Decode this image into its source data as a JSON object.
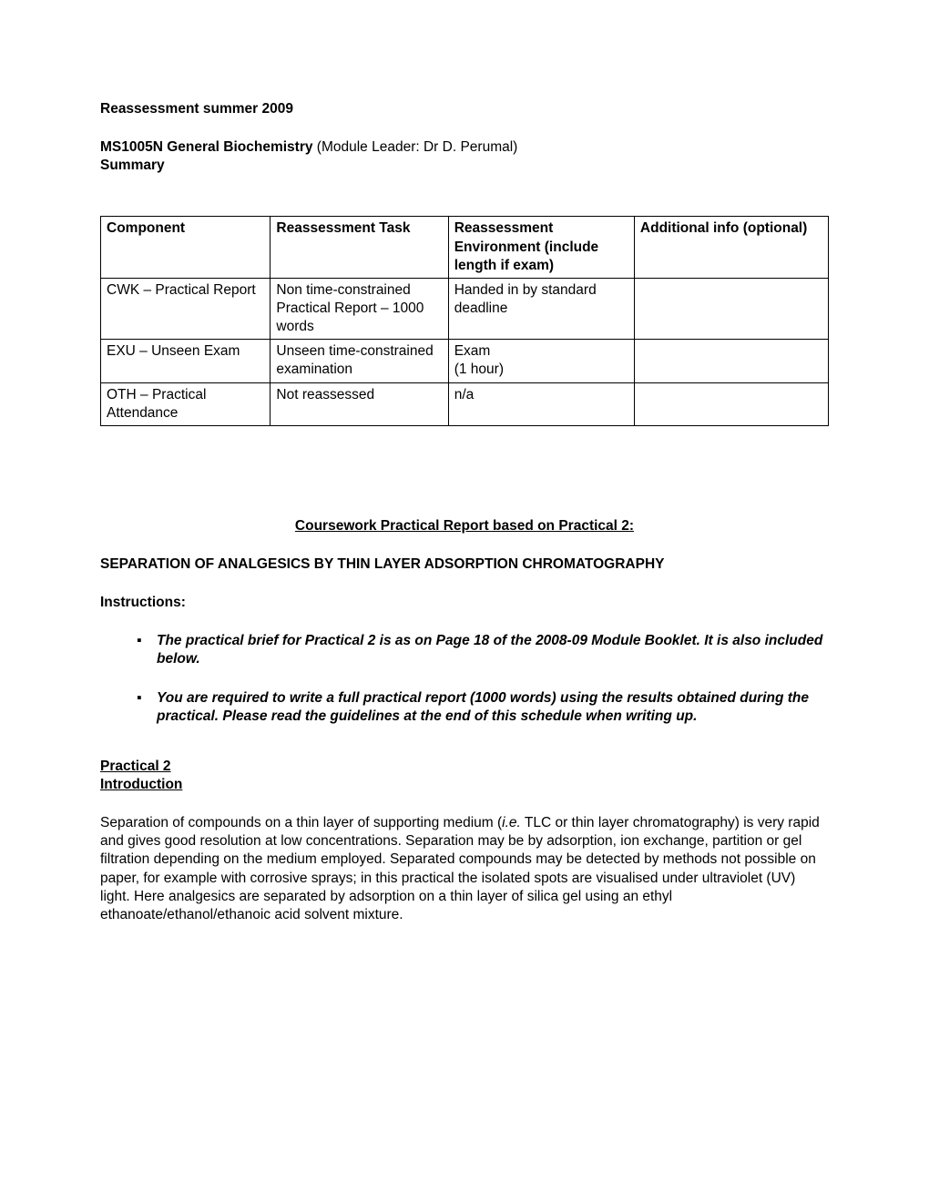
{
  "header": {
    "title": "Reassessment summer 2009",
    "module_code": "MS1005N",
    "module_name": "General Biochemistry",
    "module_leader_prefix": " (Module Leader: ",
    "module_leader": "Dr D. Perumal",
    "module_leader_suffix": ")",
    "summary": "Summary"
  },
  "table": {
    "headers": {
      "c1": "Component",
      "c2": "Reassessment Task",
      "c3": "Reassessment Environment (include length if exam)",
      "c4": "Additional info (optional)"
    },
    "rows": [
      {
        "c1": "CWK – Practical Report",
        "c2": "Non time-constrained Practical Report – 1000 words",
        "c3": "Handed in by standard deadline",
        "c4": ""
      },
      {
        "c1": "EXU – Unseen Exam",
        "c2": "Unseen time-constrained examination",
        "c3": "Exam\n(1 hour)",
        "c4": ""
      },
      {
        "c1": "OTH – Practical Attendance",
        "c2": "Not reassessed",
        "c3": "n/a",
        "c4": ""
      }
    ]
  },
  "coursework": {
    "heading": "Coursework Practical Report based on Practical 2:",
    "subheading": "SEPARATION OF ANALGESICS BY THIN LAYER ADSORPTION CHROMATOGRAPHY",
    "instructions_label": "Instructions:",
    "bullets": [
      "The practical brief for Practical 2 is as on Page 18 of the 2008-09 Module Booklet. It is also included below.",
      "You are required to write a full practical report (1000 words) using the results obtained during the practical. Please read the guidelines at the end of this schedule when writing up."
    ]
  },
  "practical": {
    "heading1": "Practical 2",
    "heading2": "Introduction",
    "body_part1": "Separation of compounds on a thin layer of supporting medium (",
    "body_italic": "i.e.",
    "body_part2": " TLC or thin layer chromatography) is very rapid and gives good resolution at low concentrations. Separation may be by adsorption, ion exchange, partition or gel filtration depending on the medium employed.  Separated compounds may be detected by methods not possible on paper, for example with corrosive sprays; in this practical the isolated spots are visualised under ultraviolet (UV) light.  Here analgesics are separated by adsorption on a thin layer of silica gel using an ethyl ethanoate/ethanol/ethanoic acid solvent mixture."
  }
}
